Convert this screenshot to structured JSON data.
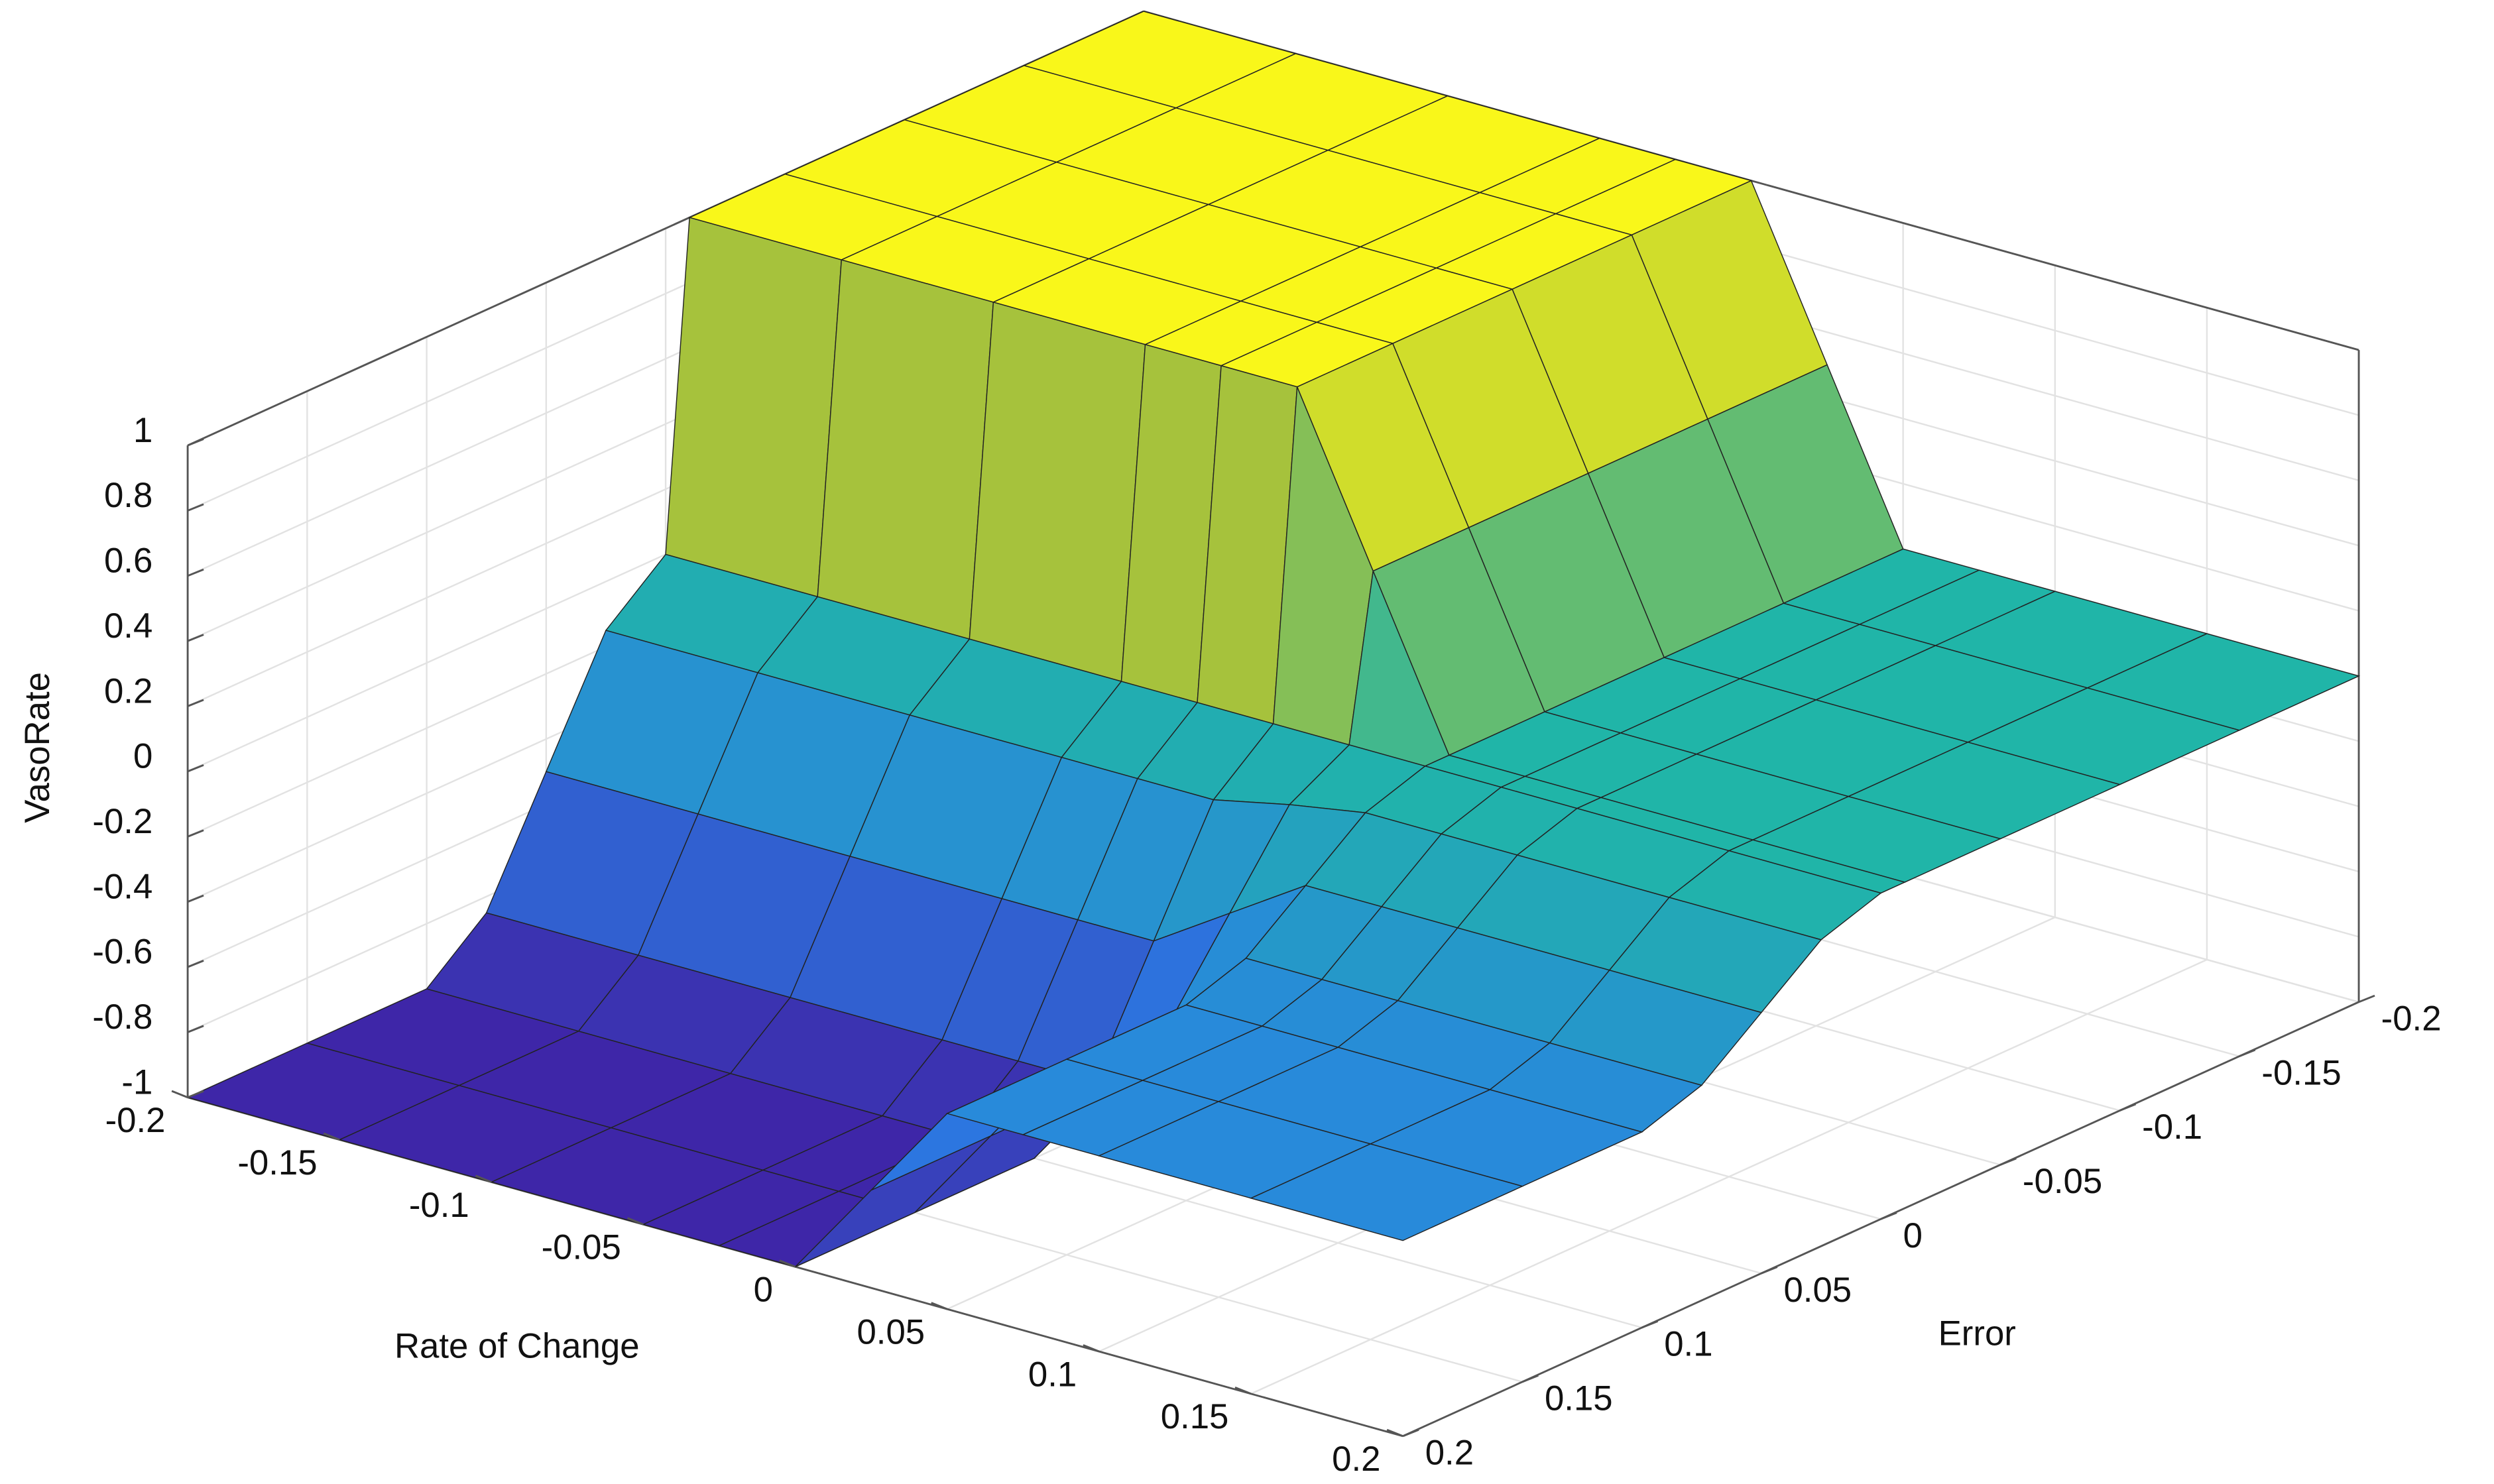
{
  "chart_data": {
    "type": "surface",
    "xlabel": "Rate of Change",
    "ylabel": "Error",
    "zlabel": "VasoRate",
    "x": [
      -0.2,
      -0.15,
      -0.1,
      -0.05,
      -0.025,
      0,
      0.025,
      0.05,
      0.075,
      0.1,
      0.15,
      0.2
    ],
    "y": [
      -0.2,
      -0.15,
      -0.1,
      -0.05,
      -0.01,
      0,
      0.025,
      0.05,
      0.075,
      0.1,
      0.15,
      0.2
    ],
    "z": [
      [
        1,
        1,
        1,
        1,
        1,
        1,
        0.5,
        0,
        0,
        0,
        0,
        0
      ],
      [
        1,
        1,
        1,
        1,
        1,
        1,
        0.5,
        0,
        0,
        0,
        0,
        0
      ],
      [
        1,
        1,
        1,
        1,
        1,
        1,
        0.5,
        0,
        0,
        0,
        0,
        0
      ],
      [
        1,
        1,
        1,
        1,
        1,
        1,
        0.5,
        0,
        0,
        0,
        0,
        0
      ],
      [
        1,
        1,
        1,
        1,
        1,
        1,
        0.5,
        0,
        0,
        0,
        0,
        0
      ],
      [
        0,
        0,
        0,
        0,
        0,
        0,
        0,
        0,
        0,
        0,
        0,
        0
      ],
      [
        -0.15,
        -0.15,
        -0.15,
        -0.15,
        -0.15,
        -0.15,
        -0.1,
        -0.06,
        -0.06,
        -0.06,
        -0.06,
        -0.06
      ],
      [
        -0.5,
        -0.5,
        -0.5,
        -0.5,
        -0.5,
        -0.5,
        -0.35,
        -0.2,
        -0.2,
        -0.2,
        -0.2,
        -0.2
      ],
      [
        -0.85,
        -0.85,
        -0.85,
        -0.85,
        -0.85,
        -0.85,
        -0.6,
        -0.34,
        -0.34,
        -0.34,
        -0.34,
        -0.34
      ],
      [
        -1,
        -1,
        -1,
        -1,
        -1,
        -1,
        -0.7,
        -0.4,
        -0.4,
        -0.4,
        -0.4,
        -0.4
      ],
      [
        -1,
        -1,
        -1,
        -1,
        -1,
        -1,
        -0.7,
        -0.4,
        -0.4,
        -0.4,
        -0.4,
        -0.4
      ],
      [
        -1,
        -1,
        -1,
        -1,
        -1,
        -1,
        -0.7,
        -0.4,
        -0.4,
        -0.4,
        -0.4,
        -0.4
      ]
    ],
    "xlim": [
      -0.2,
      0.2
    ],
    "ylim": [
      -0.2,
      0.2
    ],
    "zlim": [
      -1,
      1
    ],
    "xticks": [
      -0.2,
      -0.15,
      -0.1,
      -0.05,
      0,
      0.05,
      0.1,
      0.15,
      0.2
    ],
    "yticks": [
      -0.2,
      -0.15,
      -0.1,
      -0.05,
      0,
      0.05,
      0.1,
      0.15,
      0.2
    ],
    "zticks": [
      -1,
      -0.8,
      -0.6,
      -0.4,
      -0.2,
      0,
      0.2,
      0.4,
      0.6,
      0.8,
      1
    ],
    "colormap": [
      "#3e26a8",
      "#2a7fe6",
      "#20b5a8",
      "#a6c23c",
      "#f9f71a"
    ],
    "edgecolor": "#222222",
    "grid": true
  }
}
